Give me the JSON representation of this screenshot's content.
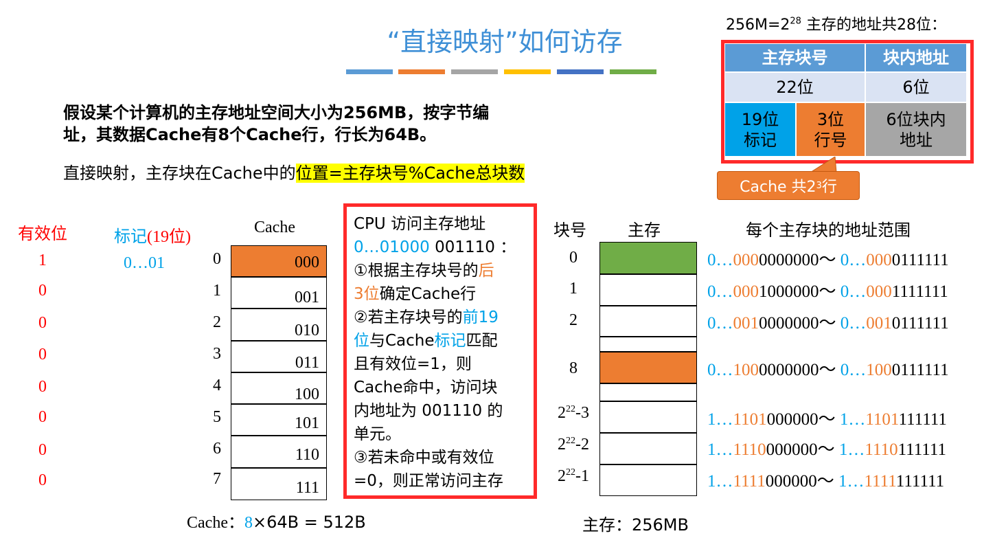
{
  "title": "“直接映射”如何访存",
  "stripes": [
    "#5b9bd5",
    "#ed7d31",
    "#a5a5a5",
    "#ffc000",
    "#4472c4",
    "#70ad47"
  ],
  "intro": {
    "line1_pre": "假设某个计算机的主存地址空间大小为256MB，按",
    "line1_bold": "字节",
    "line1_post": "编",
    "line2": "址，其数据Cache有8个Cache行，行长为64B。"
  },
  "formula": {
    "prefix": "直接映射，主存块在Cache中的",
    "highlight": "位置=主存块号%Cache总块数"
  },
  "address": {
    "title_pre": "256M=2",
    "title_sup": "28",
    "title_post": " 主存的地址共28位：",
    "header_block": "主存块号",
    "header_offset": "块内地址",
    "bits_block": "22位",
    "bits_offset": "6位",
    "tag": "19位\n标记",
    "line": "3位\n行号",
    "offset": "6位块内\n地址",
    "callout_pre": "Cache 共2",
    "callout_sup": "3",
    "callout_post": " 行"
  },
  "cache": {
    "valid_head": "有效位",
    "tag_head_pre": "标记",
    "tag_head_paren": "(19位)",
    "cache_head": "Cache",
    "valid": [
      "1",
      "0",
      "0",
      "0",
      "0",
      "0",
      "0",
      "0"
    ],
    "tag_first": "0…01",
    "index": [
      "0",
      "1",
      "2",
      "3",
      "4",
      "5",
      "6",
      "7"
    ],
    "lines": [
      "000",
      "001",
      "010",
      "011",
      "100",
      "101",
      "110",
      "111"
    ],
    "size_pre": "Cache：",
    "size_num": "8",
    "size_post": "×64B = 512B"
  },
  "cpu": {
    "l1": "CPU 访问主存地址",
    "l2_blue": "0…01000",
    "l2_black": " 001110 ：",
    "s1_pre": "①根据主存块号的",
    "s1_orange": "后\n3位",
    "s1_post": "确定Cache行",
    "s2_pre": "②若主存块号的",
    "s2_blue": "前19\n位",
    "s2_mid": "与Cache",
    "s2_blue2": "标记",
    "s2_post": "匹配\n且有效位=1，则\nCache命中，访问块\n内地址为 001110 的\n单元。",
    "s3": "③若未命中或有效位\n=0，则正常访问主存"
  },
  "memory": {
    "blockno_head": "块号",
    "mem_head": "主存",
    "range_head": "每个主存块的地址范围",
    "blocks": [
      "0",
      "1",
      "2",
      "8"
    ],
    "blocks_pow": [
      {
        "base": "2",
        "sup": "22",
        "suffix": "-3"
      },
      {
        "base": "2",
        "sup": "22",
        "suffix": "-2"
      },
      {
        "base": "2",
        "sup": "22",
        "suffix": "-1"
      }
    ],
    "ranges": [
      {
        "p": "0…",
        "o": "000",
        "z": "0000000",
        "sep": "～ ",
        "p2": "0…",
        "o2": "000",
        "e": "0111111"
      },
      {
        "p": "0…",
        "o": "000",
        "z": "1000000",
        "sep": "～ ",
        "p2": "0…",
        "o2": "000",
        "e": "1111111"
      },
      {
        "p": "0…",
        "o": "001",
        "z": "0000000",
        "sep": "～ ",
        "p2": "0…",
        "o2": "001",
        "e": "0111111"
      },
      {
        "p": "0…",
        "o": "100",
        "z": "0000000",
        "sep": "～ ",
        "p2": "0…",
        "o2": "100",
        "e": "0111111"
      },
      {
        "p": "1…",
        "o": "1101",
        "z": "000000",
        "sep": "～ ",
        "p2": "1…",
        "o2": "1101",
        "e": "111111"
      },
      {
        "p": "1…",
        "o": "1110",
        "z": "000000",
        "sep": "～ ",
        "p2": "1…",
        "o2": "1110",
        "e": "111111"
      },
      {
        "p": "1…",
        "o": "1111",
        "z": "000000",
        "sep": "～ ",
        "p2": "1…",
        "o2": "1111",
        "e": "111111"
      }
    ],
    "size": "主存：256MB"
  },
  "colors": {
    "green": "#70ad47",
    "orange": "#ed7d31",
    "blue": "#00a2e8",
    "red": "#ff0000"
  }
}
